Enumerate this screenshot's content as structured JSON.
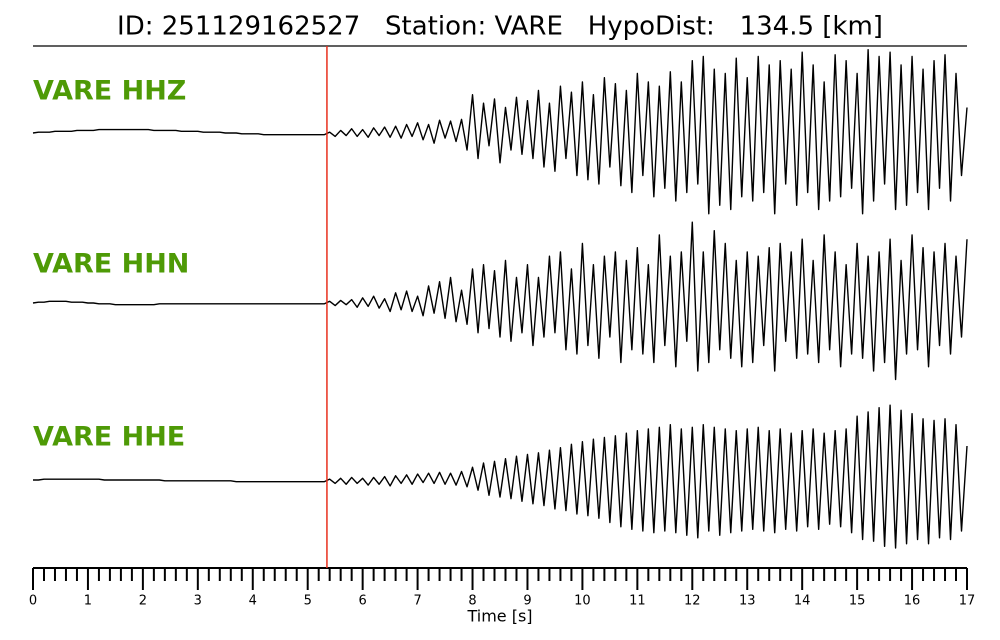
{
  "chart_data": {
    "type": "line",
    "title": "ID: 251129162527   Station: VARE   HypoDist:   134.5 [km]",
    "xlabel": "Time [s]",
    "xlim": [
      0,
      17
    ],
    "xticks": [
      0,
      1,
      2,
      3,
      4,
      5,
      6,
      7,
      8,
      9,
      10,
      11,
      12,
      13,
      14,
      15,
      16,
      17
    ],
    "xminor_divisions": 5,
    "label_color": "#4e9a06",
    "vlines": [
      {
        "x": 5.35,
        "color": "#e8301c"
      }
    ],
    "x": [
      0,
      0.1,
      0.2,
      0.3,
      0.4,
      0.5,
      0.6,
      0.7,
      0.8,
      0.9,
      1,
      1.1,
      1.2,
      1.3,
      1.4,
      1.5,
      1.6,
      1.7,
      1.8,
      1.9,
      2,
      2.1,
      2.2,
      2.3,
      2.4,
      2.5,
      2.6,
      2.7,
      2.8,
      2.9,
      3,
      3.1,
      3.2,
      3.3,
      3.4,
      3.5,
      3.6,
      3.7,
      3.8,
      3.9,
      4,
      4.1,
      4.2,
      4.3,
      4.4,
      4.5,
      4.6,
      4.7,
      4.8,
      4.9,
      5,
      5.1,
      5.2,
      5.3,
      5.4,
      5.5,
      5.6,
      5.7,
      5.8,
      5.9,
      6,
      6.1,
      6.2,
      6.3,
      6.4,
      6.5,
      6.6,
      6.7,
      6.8,
      6.9,
      7,
      7.1,
      7.2,
      7.3,
      7.4,
      7.5,
      7.6,
      7.7,
      7.8,
      7.9,
      8,
      8.1,
      8.2,
      8.3,
      8.4,
      8.5,
      8.6,
      8.7,
      8.8,
      8.9,
      9,
      9.1,
      9.2,
      9.3,
      9.4,
      9.5,
      9.6,
      9.7,
      9.8,
      9.9,
      10,
      10.1,
      10.2,
      10.3,
      10.4,
      10.5,
      10.6,
      10.7,
      10.8,
      10.9,
      11,
      11.1,
      11.2,
      11.3,
      11.4,
      11.5,
      11.6,
      11.7,
      11.8,
      11.9,
      12,
      12.1,
      12.2,
      12.3,
      12.4,
      12.5,
      12.6,
      12.7,
      12.8,
      12.9,
      13,
      13.1,
      13.2,
      13.3,
      13.4,
      13.5,
      13.6,
      13.7,
      13.8,
      13.9,
      14,
      14.1,
      14.2,
      14.3,
      14.4,
      14.5,
      14.6,
      14.7,
      14.8,
      14.9,
      15,
      15.1,
      15.2,
      15.3,
      15.4,
      15.5,
      15.6,
      15.7,
      15.8,
      15.9,
      16,
      16.1,
      16.2,
      16.3,
      16.4,
      16.5,
      16.6,
      16.7,
      16.8,
      16.9,
      17
    ],
    "series": [
      {
        "name": "VARE HHZ",
        "color": "#000000",
        "values": [
          0,
          0.01,
          0.01,
          0.01,
          0.02,
          0.02,
          0.02,
          0.02,
          0.03,
          0.03,
          0.03,
          0.03,
          0.04,
          0.04,
          0.04,
          0.04,
          0.04,
          0.04,
          0.04,
          0.04,
          0.04,
          0.04,
          0.03,
          0.03,
          0.03,
          0.03,
          0.03,
          0.02,
          0.02,
          0.02,
          0.02,
          0.01,
          0.01,
          0.01,
          0.01,
          0,
          0,
          0,
          -0.01,
          -0.01,
          -0.01,
          -0.01,
          -0.02,
          -0.02,
          -0.02,
          -0.02,
          -0.02,
          -0.02,
          -0.02,
          -0.02,
          -0.02,
          -0.02,
          -0.02,
          -0.02,
          0.01,
          -0.04,
          0.03,
          -0.03,
          0.05,
          -0.04,
          0.04,
          -0.05,
          0.06,
          -0.03,
          0.07,
          -0.05,
          0.08,
          -0.06,
          0.1,
          -0.04,
          0.12,
          -0.08,
          0.1,
          -0.12,
          0.15,
          -0.06,
          0.14,
          -0.1,
          0.16,
          -0.2,
          0.45,
          -0.3,
          0.35,
          -0.15,
          0.4,
          -0.35,
          0.3,
          -0.2,
          0.42,
          -0.25,
          0.38,
          -0.3,
          0.5,
          -0.4,
          0.35,
          -0.45,
          0.55,
          -0.3,
          0.48,
          -0.5,
          0.6,
          -0.55,
          0.45,
          -0.6,
          0.65,
          -0.4,
          0.58,
          -0.62,
          0.5,
          -0.7,
          0.7,
          -0.5,
          0.6,
          -0.75,
          0.55,
          -0.65,
          0.72,
          -0.8,
          0.6,
          -0.7,
          0.85,
          -0.6,
          0.9,
          -0.95,
          0.75,
          -0.85,
          0.7,
          -0.9,
          0.88,
          -0.75,
          0.65,
          -0.8,
          0.9,
          -0.7,
          0.8,
          -0.95,
          0.85,
          -0.6,
          0.75,
          -0.85,
          0.95,
          -0.7,
          0.8,
          -0.9,
          0.6,
          -0.8,
          0.92,
          -0.75,
          0.85,
          -0.65,
          0.7,
          -0.95,
          0.98,
          -0.8,
          0.9,
          -0.6,
          0.95,
          -0.9,
          0.8,
          -0.85,
          0.9,
          -0.7,
          0.75,
          -0.9,
          0.85,
          -0.65,
          0.92,
          -0.8,
          0.7,
          -0.5,
          0.3
        ]
      },
      {
        "name": "VARE HHN",
        "color": "#000000",
        "values": [
          0,
          0.01,
          0.01,
          0.02,
          0.02,
          0.02,
          0.02,
          0.01,
          0.01,
          0.01,
          0,
          0,
          -0.01,
          -0.01,
          -0.01,
          -0.02,
          -0.02,
          -0.02,
          -0.02,
          -0.02,
          -0.02,
          -0.02,
          -0.02,
          -0.01,
          -0.01,
          -0.01,
          -0.01,
          -0.01,
          -0.01,
          -0.01,
          -0.01,
          -0.01,
          -0.01,
          -0.01,
          -0.01,
          -0.01,
          -0.01,
          -0.01,
          -0.01,
          -0.01,
          -0.01,
          -0.01,
          -0.01,
          -0.01,
          -0.01,
          -0.01,
          -0.01,
          -0.01,
          -0.01,
          -0.01,
          -0.01,
          -0.01,
          -0.01,
          -0.01,
          0.02,
          -0.03,
          0.03,
          -0.02,
          0.04,
          -0.05,
          0.06,
          -0.04,
          0.08,
          -0.06,
          0.05,
          -0.1,
          0.12,
          -0.08,
          0.14,
          -0.1,
          0.08,
          -0.15,
          0.2,
          -0.12,
          0.25,
          -0.18,
          0.3,
          -0.22,
          0.15,
          -0.25,
          0.4,
          -0.35,
          0.45,
          -0.3,
          0.38,
          -0.4,
          0.5,
          -0.45,
          0.3,
          -0.35,
          0.45,
          -0.5,
          0.3,
          -0.4,
          0.55,
          -0.35,
          0.6,
          -0.55,
          0.4,
          -0.6,
          0.7,
          -0.5,
          0.45,
          -0.65,
          0.55,
          -0.4,
          0.6,
          -0.7,
          0.5,
          -0.55,
          0.65,
          -0.6,
          0.45,
          -0.7,
          0.8,
          -0.5,
          0.55,
          -0.75,
          0.6,
          -0.45,
          0.95,
          -0.8,
          0.6,
          -0.7,
          0.85,
          -0.55,
          0.7,
          -0.65,
          0.5,
          -0.75,
          0.6,
          -0.7,
          0.55,
          -0.5,
          0.65,
          -0.8,
          0.7,
          -0.45,
          0.6,
          -0.65,
          0.75,
          -0.6,
          0.5,
          -0.7,
          0.8,
          -0.55,
          0.6,
          -0.75,
          0.45,
          -0.6,
          0.7,
          -0.65,
          0.55,
          -0.8,
          0.6,
          -0.7,
          0.75,
          -0.9,
          0.5,
          -0.6,
          0.8,
          -0.55,
          0.65,
          -0.75,
          0.6,
          -0.5,
          0.7,
          -0.6,
          0.55,
          -0.4,
          0.75
        ]
      },
      {
        "name": "VARE HHE",
        "color": "#000000",
        "values": [
          0,
          0,
          0.01,
          0.01,
          0.01,
          0.01,
          0.01,
          0.01,
          0.01,
          0.01,
          0.01,
          0.01,
          0.01,
          0,
          0,
          0,
          0,
          0,
          0,
          0,
          0,
          0,
          0,
          0,
          -0.01,
          -0.01,
          -0.01,
          -0.01,
          -0.01,
          -0.01,
          -0.01,
          -0.01,
          -0.01,
          -0.01,
          -0.01,
          -0.01,
          -0.01,
          -0.02,
          -0.02,
          -0.02,
          -0.02,
          -0.02,
          -0.02,
          -0.02,
          -0.02,
          -0.02,
          -0.02,
          -0.02,
          -0.02,
          -0.02,
          -0.02,
          -0.02,
          -0.02,
          -0.02,
          0.01,
          -0.04,
          0.02,
          -0.05,
          0.03,
          -0.04,
          0.02,
          -0.06,
          0.03,
          -0.05,
          0.04,
          -0.07,
          0.05,
          -0.04,
          0.06,
          -0.05,
          0.07,
          -0.03,
          0.08,
          -0.04,
          0.09,
          -0.05,
          0.08,
          -0.06,
          0.1,
          -0.08,
          0.15,
          -0.12,
          0.2,
          -0.18,
          0.22,
          -0.2,
          0.25,
          -0.22,
          0.28,
          -0.25,
          0.3,
          -0.28,
          0.32,
          -0.3,
          0.35,
          -0.34,
          0.38,
          -0.36,
          0.42,
          -0.4,
          0.45,
          -0.42,
          0.48,
          -0.45,
          0.5,
          -0.5,
          0.52,
          -0.55,
          0.55,
          -0.58,
          0.58,
          -0.6,
          0.6,
          -0.62,
          0.62,
          -0.6,
          0.65,
          -0.62,
          0.6,
          -0.65,
          0.62,
          -0.68,
          0.65,
          -0.6,
          0.62,
          -0.65,
          0.6,
          -0.62,
          0.58,
          -0.6,
          0.6,
          -0.58,
          0.62,
          -0.6,
          0.58,
          -0.62,
          0.6,
          -0.58,
          0.55,
          -0.6,
          0.58,
          -0.55,
          0.6,
          -0.58,
          0.55,
          -0.52,
          0.58,
          -0.55,
          0.6,
          -0.62,
          0.75,
          -0.7,
          0.8,
          -0.72,
          0.85,
          -0.78,
          0.88,
          -0.8,
          0.82,
          -0.75,
          0.78,
          -0.7,
          0.72,
          -0.75,
          0.7,
          -0.68,
          0.72,
          -0.7,
          0.65,
          -0.6,
          0.4
        ]
      }
    ]
  }
}
